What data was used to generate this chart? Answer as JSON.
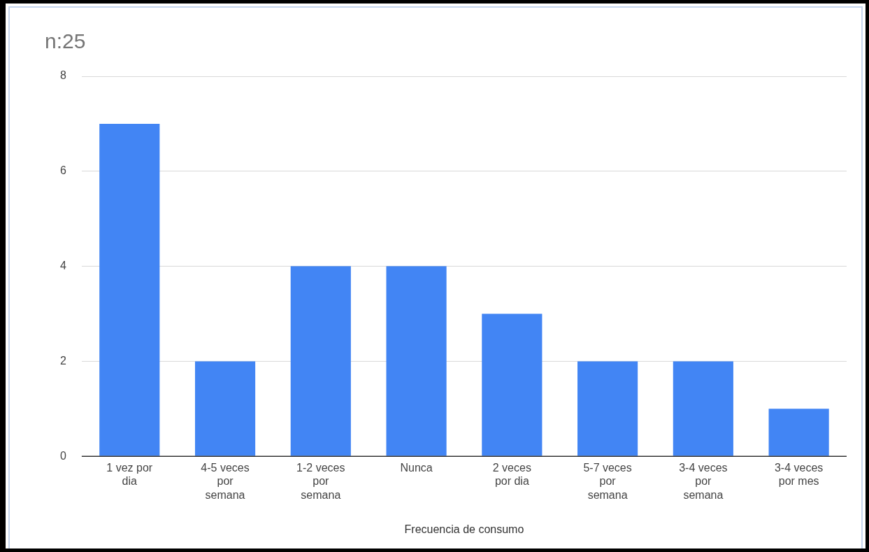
{
  "chart_data": {
    "type": "bar",
    "title": "n:25",
    "xlabel": "Frecuencia de consumo",
    "categories": [
      "1 vez por dia",
      "4-5 veces por semana",
      "1-2 veces por semana",
      "Nunca",
      "2 veces por dia",
      "5-7 veces por semana",
      "3-4 veces por semana",
      "3-4 veces por mes"
    ],
    "values": [
      7,
      2,
      4,
      4,
      3,
      2,
      2,
      1
    ],
    "color": "#4285f4",
    "ylim": [
      0,
      8
    ],
    "yticks": [
      0,
      2,
      4,
      6,
      8
    ],
    "grid": "y",
    "legend": false
  }
}
